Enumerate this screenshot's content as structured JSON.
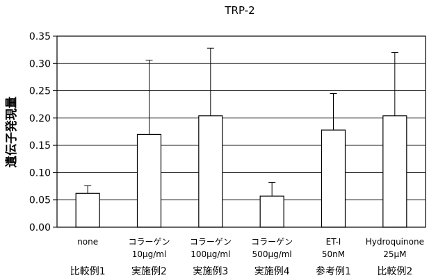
{
  "chart_data": {
    "type": "bar",
    "title": "TRP-2",
    "ylabel": "遺伝子発現量",
    "xlabel": "",
    "ylim": [
      0,
      0.35
    ],
    "yticks": [
      "0.00",
      "0.05",
      "0.10",
      "0.15",
      "0.20",
      "0.25",
      "0.30",
      "0.35"
    ],
    "grid": true,
    "categories": [
      {
        "name": "none",
        "dose": "",
        "group": "比較例1"
      },
      {
        "name": "コラーゲン",
        "dose": "10μg/ml",
        "group": "実施例2"
      },
      {
        "name": "コラーゲン",
        "dose": "100μg/ml",
        "group": "実施例3"
      },
      {
        "name": "コラーゲン",
        "dose": "500μg/ml",
        "group": "実施例4"
      },
      {
        "name": "ET-I",
        "dose": "50nM",
        "group": "参考例1"
      },
      {
        "name": "Hydroquinone",
        "dose": "25μM",
        "group": "比較例2"
      }
    ],
    "values": [
      0.062,
      0.17,
      0.204,
      0.057,
      0.178,
      0.204
    ],
    "error_upper": [
      0.014,
      0.136,
      0.124,
      0.025,
      0.067,
      0.116
    ]
  }
}
